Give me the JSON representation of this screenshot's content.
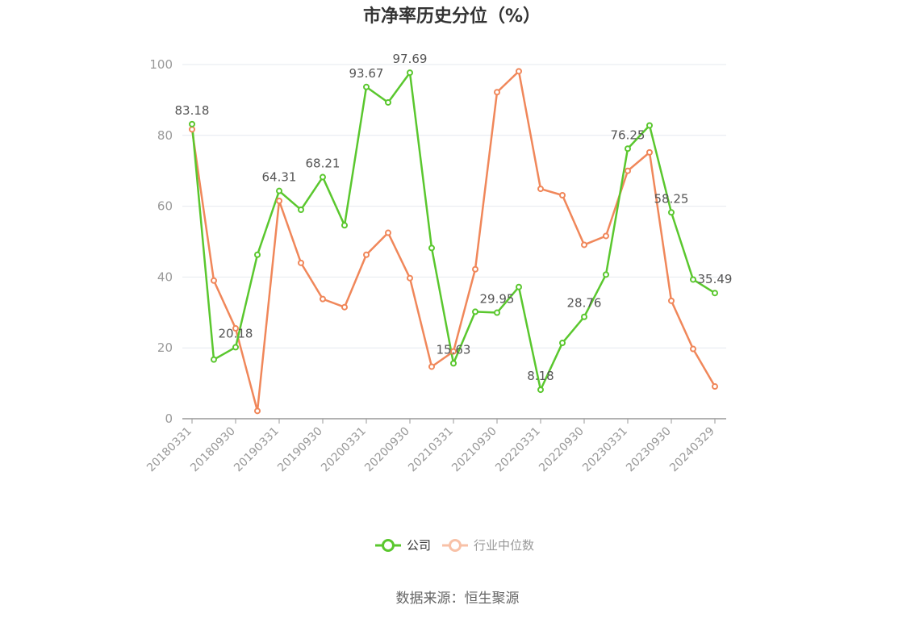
{
  "chart_data": {
    "type": "line",
    "title": "市净率历史分位（%）",
    "source": "数据来源：恒生聚源",
    "ylim": [
      0,
      100
    ],
    "yticks": [
      0,
      20,
      40,
      60,
      80,
      100
    ],
    "grid": true,
    "legend_position": "bottom",
    "x": [
      "20180331",
      "20180630",
      "20180930",
      "20181231",
      "20190331",
      "20190630",
      "20190930",
      "20191231",
      "20200331",
      "20200630",
      "20200930",
      "20201231",
      "20210331",
      "20210630",
      "20210930",
      "20211231",
      "20220331",
      "20220630",
      "20220930",
      "20221231",
      "20230331",
      "20230630",
      "20230930",
      "20231231",
      "20240329"
    ],
    "x_tick_labels": [
      "20180331",
      "20180930",
      "20190331",
      "20190930",
      "20200331",
      "20200930",
      "20210331",
      "20210930",
      "20220331",
      "20220930",
      "20230331",
      "20230930",
      "20240329"
    ],
    "series": [
      {
        "name": "公司",
        "color": "#5ac72e",
        "values": [
          83.18,
          16.7,
          20.18,
          46.3,
          64.31,
          59.0,
          68.21,
          54.6,
          93.67,
          89.3,
          97.69,
          48.2,
          15.63,
          30.2,
          29.95,
          37.2,
          8.18,
          21.4,
          28.76,
          40.7,
          76.25,
          82.8,
          58.25,
          39.3,
          35.49
        ],
        "labels": {
          "0": "83.18",
          "2": "20.18",
          "4": "64.31",
          "6": "68.21",
          "8": "93.67",
          "10": "97.69",
          "12": "15.63",
          "14": "29.95",
          "16": "8.18",
          "18": "28.76",
          "20": "76.25",
          "22": "58.25",
          "24": "35.49"
        }
      },
      {
        "name": "行业中位数",
        "color": "#f0875a",
        "values": [
          81.7,
          39.0,
          25.5,
          2.2,
          61.5,
          44.0,
          33.8,
          31.5,
          46.3,
          52.5,
          39.7,
          14.7,
          19.0,
          42.2,
          92.2,
          98.1,
          64.9,
          63.1,
          49.1,
          51.6,
          70.0,
          75.2,
          33.3,
          19.7,
          9.1
        ]
      }
    ]
  }
}
